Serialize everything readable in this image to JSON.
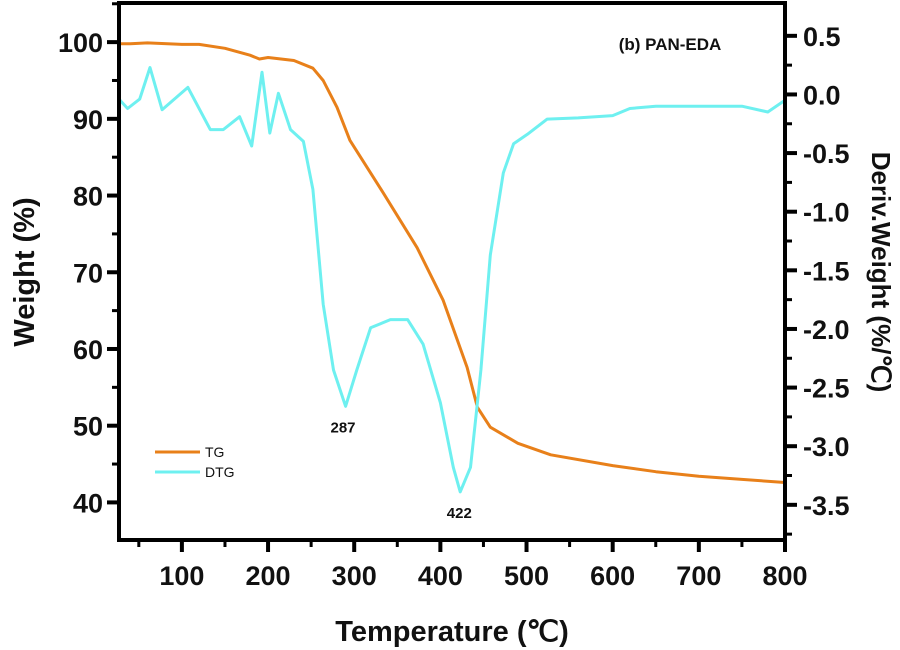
{
  "chart_data": {
    "type": "line",
    "annotation_title": "(b) PAN-EDA",
    "xlabel": "Temperature (℃)",
    "ylabel": "Weight (%)",
    "y2label": "Deriv.Weight (%/℃)",
    "xlim": [
      27,
      800
    ],
    "ylim": [
      35.1,
      105.1
    ],
    "y2lim": [
      -3.8,
      0.78
    ],
    "xticks": [
      100,
      200,
      300,
      400,
      500,
      600,
      700,
      800
    ],
    "yticks": [
      40,
      50,
      60,
      70,
      80,
      90,
      100
    ],
    "y2ticks": [
      0.5,
      0.0,
      -0.5,
      -1.0,
      -1.5,
      -2.0,
      -2.5,
      -3.0,
      -3.5
    ],
    "y2tick_labels": [
      "0.5",
      "0.0",
      "-0.5",
      "-1.0",
      "-1.5",
      "-2.0",
      "-2.5",
      "-3.0",
      "-3.5"
    ],
    "legend": {
      "placement": "lower-left",
      "entries": [
        "TG",
        "DTG"
      ]
    },
    "series": [
      {
        "name": "TG",
        "axis": "left",
        "color": "#e8801a",
        "x": [
          27,
          40,
          60,
          100,
          120,
          150,
          179,
          190,
          200,
          230,
          252,
          264,
          280,
          295,
          334,
          373,
          403,
          431,
          443,
          458,
          490,
          528,
          600,
          650,
          700,
          750,
          800
        ],
        "y": [
          99.8,
          99.8,
          99.9,
          99.7,
          99.7,
          99.2,
          98.3,
          97.8,
          98.0,
          97.6,
          96.6,
          95.0,
          91.5,
          87.2,
          80.3,
          73.2,
          66.4,
          57.6,
          52.4,
          49.8,
          47.7,
          46.2,
          44.8,
          44.0,
          43.4,
          43.0,
          42.6
        ]
      },
      {
        "name": "DTG",
        "axis": "right",
        "color": "#6ef0f0",
        "x": [
          27,
          37,
          51,
          63,
          77,
          107,
          133,
          148,
          167,
          181,
          193,
          202,
          212,
          226,
          241,
          252,
          264,
          276,
          290,
          303,
          319,
          342,
          362,
          380,
          400,
          415,
          423,
          435,
          447,
          458,
          473,
          485,
          501,
          524,
          560,
          600,
          620,
          650,
          700,
          750,
          780,
          800
        ],
        "y": [
          -0.04,
          -0.12,
          -0.04,
          0.23,
          -0.13,
          0.06,
          -0.3,
          -0.3,
          -0.19,
          -0.44,
          0.19,
          -0.33,
          0.01,
          -0.3,
          -0.4,
          -0.81,
          -1.79,
          -2.35,
          -2.66,
          -2.35,
          -1.99,
          -1.92,
          -1.92,
          -2.13,
          -2.63,
          -3.18,
          -3.39,
          -3.18,
          -2.35,
          -1.37,
          -0.67,
          -0.42,
          -0.34,
          -0.21,
          -0.2,
          -0.18,
          -0.12,
          -0.1,
          -0.1,
          -0.1,
          -0.15,
          -0.05
        ]
      }
    ],
    "peak_labels": [
      {
        "text": "287",
        "x": 287,
        "y": -2.66
      },
      {
        "text": "422",
        "x": 422,
        "y": -3.39
      }
    ]
  }
}
